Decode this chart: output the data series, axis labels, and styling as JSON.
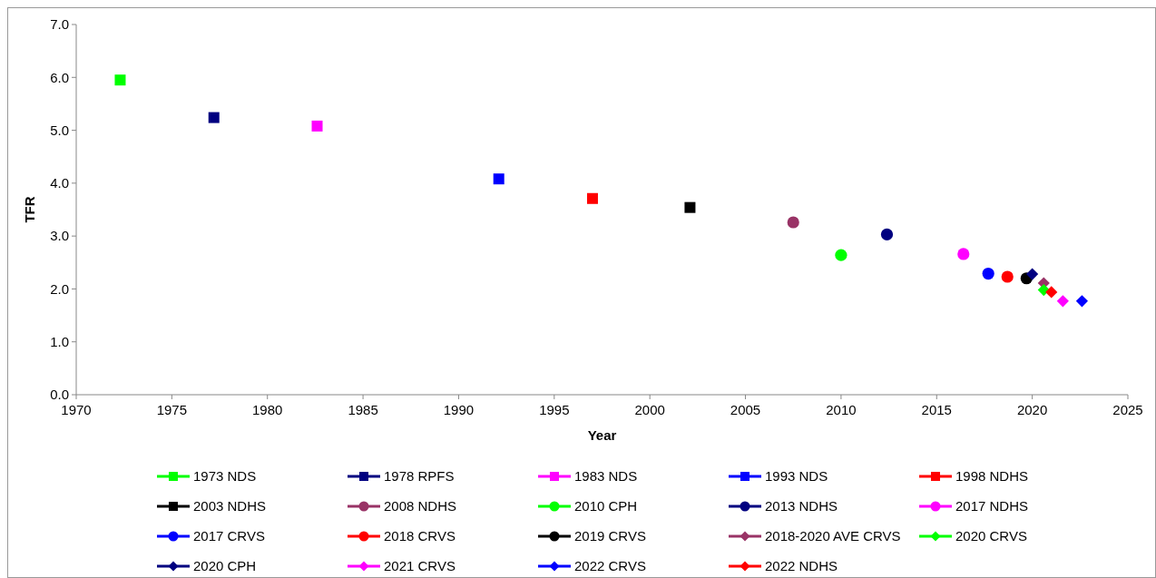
{
  "chart_data": {
    "type": "scatter",
    "xlabel": "Year",
    "ylabel": "TFR",
    "legend": "bottom",
    "grid": false,
    "xlim": [
      1970,
      2025
    ],
    "xticks": [
      1970,
      1975,
      1980,
      1985,
      1990,
      1995,
      2000,
      2005,
      2010,
      2015,
      2020,
      2025
    ],
    "ylim": [
      0,
      7
    ],
    "yticks": [
      {
        "value": 0,
        "label": "0.0"
      },
      {
        "value": 1,
        "label": "1.0"
      },
      {
        "value": 2,
        "label": "2.0"
      },
      {
        "value": 3,
        "label": "3.0"
      },
      {
        "value": 4,
        "label": "4.0"
      },
      {
        "value": 5,
        "label": "5.0"
      },
      {
        "value": 6,
        "label": "6.0"
      },
      {
        "value": 7,
        "label": "7.0"
      }
    ],
    "series": [
      {
        "name": "1973 NDS",
        "color": "#00ff00",
        "marker": "square",
        "x": [
          1972.3
        ],
        "values": [
          5.95
        ]
      },
      {
        "name": "1978 RPFS",
        "color": "#000080",
        "marker": "square",
        "x": [
          1977.2
        ],
        "values": [
          5.24
        ]
      },
      {
        "name": "1983 NDS",
        "color": "#ff00ff",
        "marker": "square",
        "x": [
          1982.6
        ],
        "values": [
          5.08
        ]
      },
      {
        "name": "1993 NDS",
        "color": "#0000ff",
        "marker": "square",
        "x": [
          1992.1
        ],
        "values": [
          4.08
        ]
      },
      {
        "name": "1998 NDHS",
        "color": "#ff0000",
        "marker": "square",
        "x": [
          1997.0
        ],
        "values": [
          3.71
        ]
      },
      {
        "name": "2003 NDHS",
        "color": "#000000",
        "marker": "square",
        "x": [
          2002.1
        ],
        "values": [
          3.54
        ]
      },
      {
        "name": "2008 NDHS",
        "color": "#993366",
        "marker": "circle",
        "x": [
          2007.5
        ],
        "values": [
          3.26
        ]
      },
      {
        "name": "2010 CPH",
        "color": "#00ff00",
        "marker": "circle",
        "x": [
          2010.0
        ],
        "values": [
          2.64
        ]
      },
      {
        "name": "2013 NDHS",
        "color": "#000080",
        "marker": "circle",
        "x": [
          2012.4
        ],
        "values": [
          3.03
        ]
      },
      {
        "name": "2017 NDHS",
        "color": "#ff00ff",
        "marker": "circle",
        "x": [
          2016.4
        ],
        "values": [
          2.66
        ]
      },
      {
        "name": "2017 CRVS",
        "color": "#0000ff",
        "marker": "circle",
        "x": [
          2017.7
        ],
        "values": [
          2.29
        ]
      },
      {
        "name": "2018 CRVS",
        "color": "#ff0000",
        "marker": "circle",
        "x": [
          2018.7
        ],
        "values": [
          2.23
        ]
      },
      {
        "name": "2019 CRVS",
        "color": "#000000",
        "marker": "circle",
        "x": [
          2019.7
        ],
        "values": [
          2.2
        ]
      },
      {
        "name": "2018-2020 AVE CRVS",
        "color": "#993366",
        "marker": "diamond",
        "x": [
          2020.6
        ],
        "values": [
          2.11
        ]
      },
      {
        "name": "2020 CRVS",
        "color": "#00ff00",
        "marker": "diamond",
        "x": [
          2020.6
        ],
        "values": [
          1.98
        ]
      },
      {
        "name": "2020 CPH",
        "color": "#000080",
        "marker": "diamond",
        "x": [
          2020.0
        ],
        "values": [
          2.28
        ]
      },
      {
        "name": "2021 CRVS",
        "color": "#ff00ff",
        "marker": "diamond",
        "x": [
          2021.6
        ],
        "values": [
          1.77
        ]
      },
      {
        "name": "2022 CRVS",
        "color": "#0000ff",
        "marker": "diamond",
        "x": [
          2022.6
        ],
        "values": [
          1.77
        ]
      },
      {
        "name": "2022 NDHS",
        "color": "#ff0000",
        "marker": "diamond",
        "x": [
          2021.0
        ],
        "values": [
          1.94
        ]
      }
    ]
  }
}
